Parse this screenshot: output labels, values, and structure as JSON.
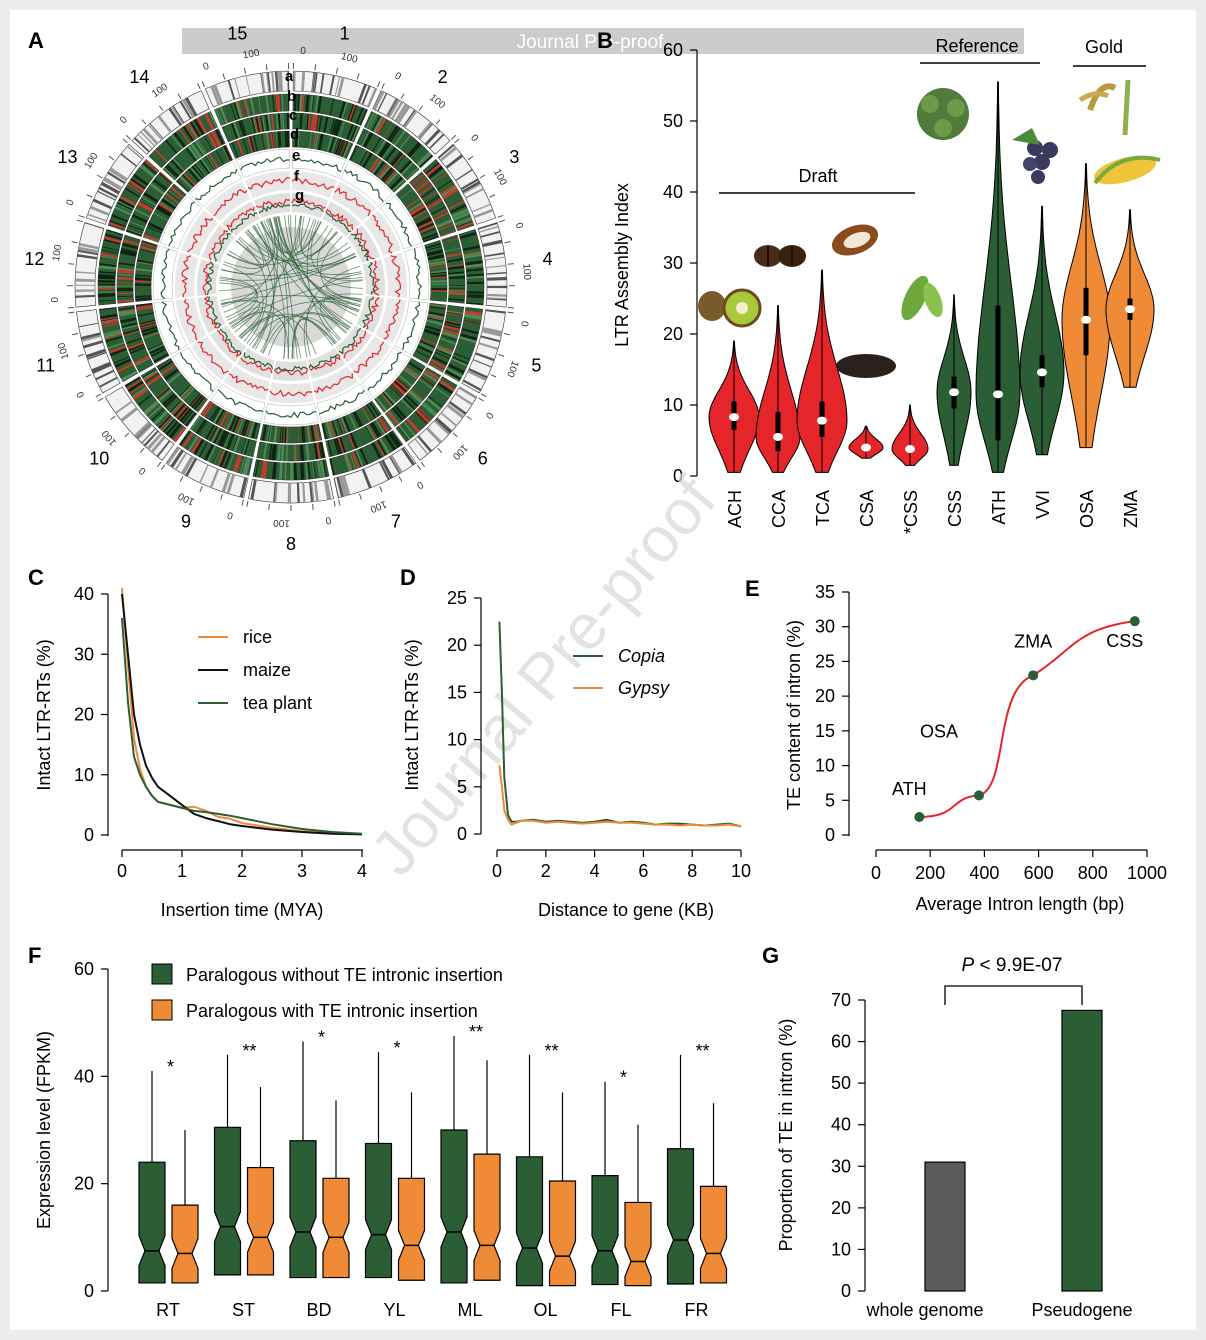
{
  "figure": {
    "watermark_banner": "Journal Pre-proof",
    "watermark_diagonal": "Journal Pre-proof",
    "panel_labels": [
      "A",
      "B",
      "C",
      "D",
      "E",
      "F",
      "G"
    ]
  },
  "panelA": {
    "chromosomes": [
      "1",
      "2",
      "3",
      "4",
      "5",
      "6",
      "7",
      "8",
      "9",
      "10",
      "11",
      "12",
      "13",
      "14",
      "15"
    ],
    "track_labels": [
      "a",
      "b",
      "c",
      "d",
      "e",
      "f",
      "g"
    ],
    "ticks": [
      "0",
      "50",
      "100",
      "150",
      "200"
    ]
  },
  "colors": {
    "green": "#2b5e34",
    "red": "#e4262b",
    "orange": "#ef8a37",
    "black": "#111111",
    "gray_bar": "#5b5b5b"
  },
  "chart_data": [
    {
      "id": "B",
      "type": "violin",
      "ylabel": "LTR Assembly Index",
      "ylim": [
        0,
        60
      ],
      "yticks": [
        "0",
        "10",
        "20",
        "30",
        "40",
        "50",
        "60"
      ],
      "group_labels": [
        "Draft",
        "Reference",
        "Gold"
      ],
      "categories": [
        "ACH",
        "CCA",
        "TCA",
        "CSA",
        "*CSS",
        "CSS",
        "ATH",
        "VVI",
        "OSA",
        "ZMA"
      ],
      "groups_of_categories": [
        "Draft",
        "Draft",
        "Draft",
        "Draft",
        "Draft",
        "Reference",
        "Reference",
        "Reference",
        "Gold",
        "Gold"
      ],
      "medians": [
        8.3,
        5.5,
        7.8,
        4.0,
        3.8,
        11.8,
        11.5,
        14.6,
        22.0,
        23.5
      ],
      "mins": [
        0.5,
        0.5,
        0.5,
        2.5,
        1.5,
        1.5,
        0.5,
        3.0,
        4.0,
        12.5
      ],
      "maxs": [
        19.0,
        24.0,
        29.0,
        7.0,
        10.0,
        25.5,
        55.5,
        38.0,
        44.0,
        37.5
      ],
      "q1": [
        6.5,
        3.5,
        5.5,
        3.5,
        3.3,
        9.5,
        5.0,
        12.5,
        17.0,
        22.0
      ],
      "q3": [
        10.5,
        9.0,
        10.5,
        4.5,
        4.3,
        14.0,
        24.0,
        17.0,
        26.5,
        25.0
      ]
    },
    {
      "id": "C",
      "type": "line",
      "xlabel": "Insertion time (MYA)",
      "ylabel": "Intact LTR-RTs (%)",
      "xlim": [
        0,
        4
      ],
      "ylim": [
        0,
        40
      ],
      "xticks": [
        "0",
        "1",
        "2",
        "3",
        "4"
      ],
      "yticks": [
        "0",
        "10",
        "20",
        "30",
        "40"
      ],
      "series": [
        {
          "name": "rice",
          "x": [
            0,
            0.1,
            0.2,
            0.3,
            0.4,
            0.5,
            0.6,
            0.8,
            1.0,
            1.2,
            1.4,
            1.6,
            1.8,
            2.0,
            2.5,
            3.0,
            3.5,
            4.0
          ],
          "y": [
            41.0,
            28.0,
            16.0,
            11.0,
            8.0,
            6.5,
            5.5,
            5.0,
            4.5,
            4.7,
            4.0,
            3.0,
            2.7,
            2.0,
            1.2,
            0.6,
            0.3,
            0.1
          ]
        },
        {
          "name": "maize",
          "x": [
            0,
            0.1,
            0.2,
            0.3,
            0.4,
            0.5,
            0.6,
            0.8,
            1.0,
            1.2,
            1.4,
            1.6,
            1.8,
            2.0,
            2.5,
            3.0,
            3.5,
            4.0
          ],
          "y": [
            40.0,
            30.0,
            20.0,
            15.0,
            11.5,
            9.5,
            8.0,
            6.5,
            5.0,
            3.5,
            2.8,
            2.3,
            1.8,
            1.5,
            0.9,
            0.5,
            0.2,
            0.1
          ]
        },
        {
          "name": "tea plant",
          "x": [
            0,
            0.1,
            0.2,
            0.3,
            0.4,
            0.5,
            0.6,
            0.8,
            1.0,
            1.2,
            1.4,
            1.6,
            1.8,
            2.0,
            2.5,
            3.0,
            3.5,
            4.0
          ],
          "y": [
            36.0,
            22.0,
            13.0,
            10.0,
            8.0,
            6.5,
            5.5,
            5.0,
            4.5,
            4.0,
            3.8,
            3.5,
            3.2,
            2.8,
            1.8,
            1.0,
            0.5,
            0.2
          ]
        }
      ]
    },
    {
      "id": "D",
      "type": "line",
      "xlabel": "Distance to gene (KB)",
      "ylabel": "Intact LTR-RTs (%)",
      "xlim": [
        0,
        10
      ],
      "ylim": [
        0,
        25
      ],
      "xticks": [
        "0",
        "2",
        "4",
        "6",
        "8",
        "10"
      ],
      "yticks": [
        "0",
        "5",
        "10",
        "15",
        "20",
        "25"
      ],
      "series": [
        {
          "name": "Copia",
          "x": [
            0.1,
            0.2,
            0.3,
            0.45,
            0.6,
            0.8,
            1.0,
            1.5,
            2.0,
            2.5,
            3.0,
            3.5,
            4.0,
            4.5,
            5.0,
            5.5,
            6.0,
            6.5,
            7.0,
            7.5,
            8.0,
            8.5,
            9.0,
            9.5,
            10.0
          ],
          "y": [
            22.5,
            15.0,
            6.0,
            2.0,
            1.3,
            1.3,
            1.4,
            1.5,
            1.3,
            1.4,
            1.3,
            1.2,
            1.3,
            1.5,
            1.2,
            1.3,
            1.2,
            1.0,
            1.1,
            1.1,
            1.0,
            0.9,
            1.0,
            1.1,
            0.8
          ]
        },
        {
          "name": "Gypsy",
          "x": [
            0.1,
            0.2,
            0.3,
            0.45,
            0.6,
            0.8,
            1.0,
            1.5,
            2.0,
            2.5,
            3.0,
            3.5,
            4.0,
            4.5,
            5.0,
            5.5,
            6.0,
            6.5,
            7.0,
            7.5,
            8.0,
            8.5,
            9.0,
            9.5,
            10.0
          ],
          "y": [
            7.3,
            5.0,
            2.5,
            1.5,
            1.0,
            1.2,
            1.4,
            1.4,
            1.2,
            1.3,
            1.2,
            1.1,
            1.2,
            1.3,
            1.2,
            1.2,
            1.1,
            1.0,
            1.0,
            0.9,
            1.0,
            0.9,
            0.9,
            1.0,
            0.8
          ]
        }
      ]
    },
    {
      "id": "E",
      "type": "scatter",
      "xlabel": "Average Intron length (bp)",
      "ylabel": "TE content of intron (%)",
      "xlim": [
        0,
        1000
      ],
      "ylim": [
        0,
        35
      ],
      "xticks": [
        "0",
        "200",
        "400",
        "600",
        "800",
        "1000"
      ],
      "yticks": [
        "0",
        "5",
        "10",
        "15",
        "20",
        "25",
        "30",
        "35"
      ],
      "points": [
        {
          "label": "ATH",
          "x": 160,
          "y": 2.6
        },
        {
          "label": "OSA",
          "x": 380,
          "y": 5.7
        },
        {
          "label": "ZMA",
          "x": 580,
          "y": 23.0
        },
        {
          "label": "CSS",
          "x": 955,
          "y": 30.8
        }
      ]
    },
    {
      "id": "F",
      "type": "box",
      "ylabel": "Expression level (FPKM)",
      "ylim": [
        0,
        60
      ],
      "yticks": [
        "0",
        "20",
        "40",
        "60"
      ],
      "categories": [
        "RT",
        "ST",
        "BD",
        "YL",
        "ML",
        "OL",
        "FL",
        "FR"
      ],
      "significance": [
        "*",
        "**",
        "*",
        "*",
        "**",
        "**",
        "*",
        "**"
      ],
      "series": [
        {
          "name": "Paralogous without TE intronic insertion",
          "q1": [
            1.5,
            3.0,
            2.5,
            2.5,
            1.5,
            1.0,
            1.2,
            1.3
          ],
          "median": [
            7.5,
            12.0,
            11.0,
            10.5,
            11.0,
            8.0,
            7.5,
            9.5
          ],
          "q3": [
            24.0,
            30.5,
            28.0,
            27.5,
            30.0,
            25.0,
            21.5,
            26.5
          ],
          "whisker_high": [
            41.0,
            44.0,
            46.5,
            44.5,
            47.5,
            44.0,
            39.0,
            44.0
          ],
          "whisker_low": [
            1.5,
            3.0,
            2.5,
            2.5,
            1.5,
            1.0,
            1.2,
            1.3
          ]
        },
        {
          "name": "Paralogous with TE intronic insertion",
          "q1": [
            1.5,
            3.0,
            2.5,
            2.0,
            2.0,
            1.0,
            1.0,
            1.5
          ],
          "median": [
            7.0,
            10.0,
            10.0,
            8.5,
            8.5,
            6.5,
            5.5,
            7.0
          ],
          "q3": [
            16.0,
            23.0,
            21.0,
            21.0,
            25.5,
            20.5,
            16.5,
            19.5
          ],
          "whisker_high": [
            30.0,
            38.0,
            35.5,
            37.0,
            43.0,
            37.0,
            31.0,
            35.0
          ],
          "whisker_low": [
            1.5,
            3.0,
            2.5,
            2.0,
            2.0,
            1.0,
            1.0,
            1.5
          ]
        }
      ]
    },
    {
      "id": "G",
      "type": "bar",
      "ylabel": "Proportion of TE in intron (%)",
      "ylim": [
        0,
        70
      ],
      "yticks": [
        "0",
        "10",
        "20",
        "30",
        "40",
        "50",
        "60",
        "70"
      ],
      "categories": [
        "whole genome",
        "Pseudogene"
      ],
      "values": [
        31.0,
        67.5
      ],
      "annotation_prefix": "P",
      "annotation_text": " < 9.9E-07"
    }
  ]
}
